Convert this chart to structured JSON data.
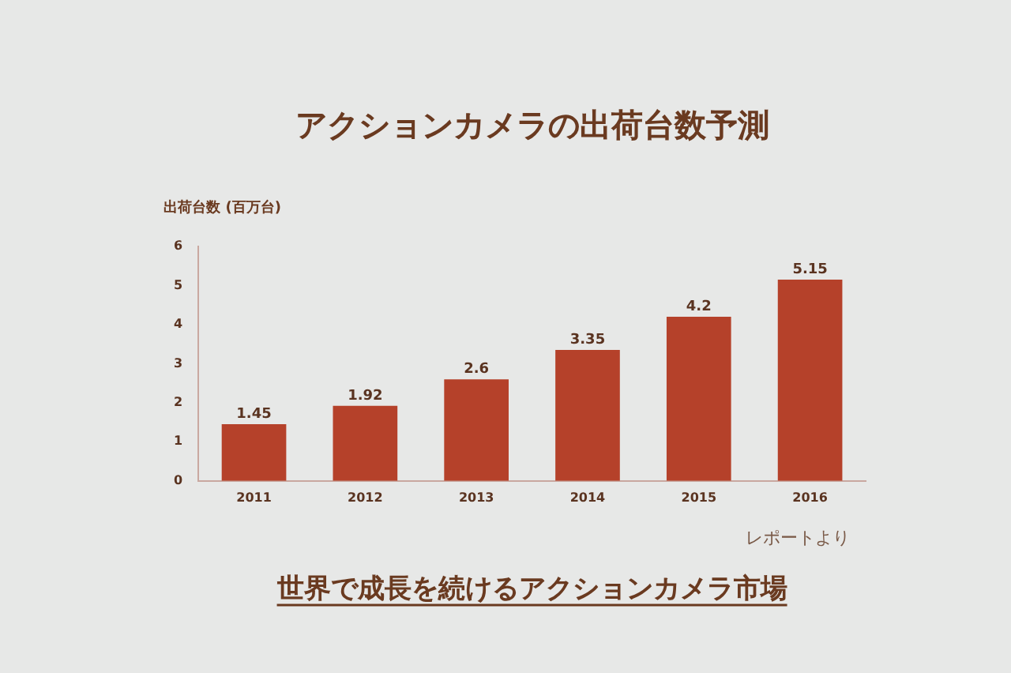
{
  "chart_data": {
    "type": "bar",
    "title": "アクションカメラの出荷台数予測",
    "ylabel": "出荷台数 (百万台)",
    "categories": [
      "2011",
      "2012",
      "2013",
      "2014",
      "2015",
      "2016"
    ],
    "values": [
      1.45,
      1.92,
      2.6,
      3.35,
      4.2,
      5.15
    ],
    "color": "#b5412a",
    "ylim": [
      0,
      6
    ],
    "yticks": [
      0,
      1,
      2,
      3,
      4,
      5,
      6
    ],
    "data_labels": true,
    "annotations": [
      "レポートより",
      "世界で成長を続けるアクションカメラ市場"
    ]
  }
}
